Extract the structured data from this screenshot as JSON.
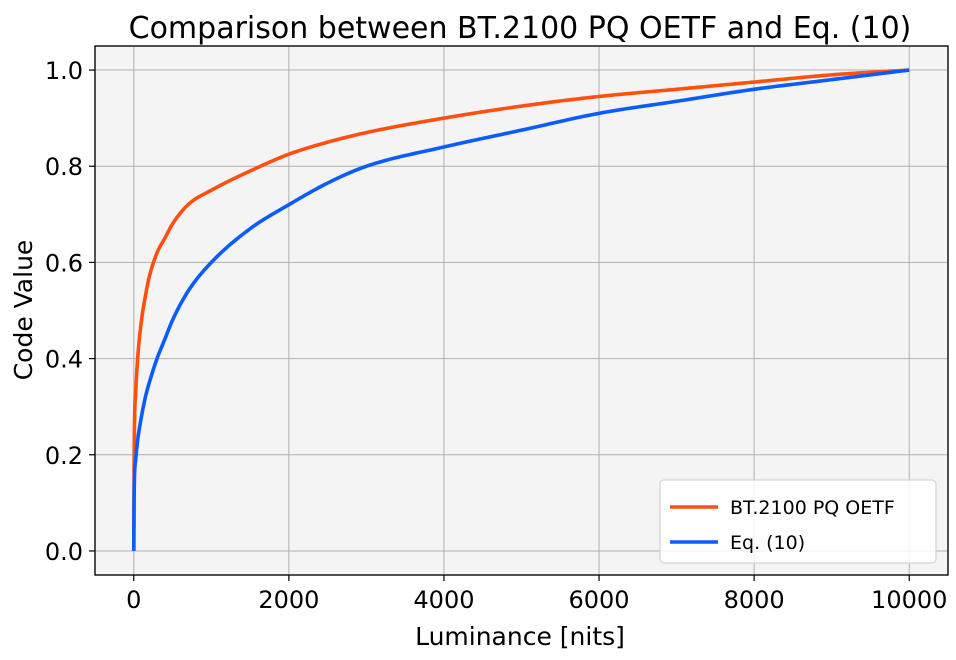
{
  "chart_data": {
    "type": "line",
    "title": "Comparison between BT.2100 PQ OETF and Eq. (10)",
    "xlabel": "Luminance [nits]",
    "ylabel": "Code Value",
    "xlim": [
      -500,
      10500
    ],
    "ylim": [
      -0.05,
      1.05
    ],
    "xticks": [
      0,
      2000,
      4000,
      6000,
      8000,
      10000
    ],
    "xtick_labels": [
      "0",
      "2000",
      "4000",
      "6000",
      "8000",
      "10000"
    ],
    "yticks": [
      0.0,
      0.2,
      0.4,
      0.6,
      0.8,
      1.0
    ],
    "ytick_labels": [
      "0.0",
      "0.2",
      "0.4",
      "0.6",
      "0.8",
      "1.0"
    ],
    "grid": true,
    "legend_position": "bottom-right",
    "background": "#f4f4f4",
    "series": [
      {
        "name": "BT.2100 PQ OETF",
        "color": "#ff5010",
        "x": [
          0,
          5,
          25,
          50,
          100,
          150,
          200,
          300,
          400,
          500,
          700,
          1000,
          1500,
          2000,
          2500,
          3000,
          4000,
          5000,
          6000,
          7000,
          8000,
          9000,
          10000
        ],
        "y": [
          0.0,
          0.2,
          0.33,
          0.4,
          0.48,
          0.53,
          0.57,
          0.62,
          0.65,
          0.68,
          0.72,
          0.75,
          0.79,
          0.825,
          0.85,
          0.87,
          0.9,
          0.925,
          0.945,
          0.96,
          0.975,
          0.99,
          1.0
        ]
      },
      {
        "name": "Eq. (10)",
        "color": "#0a5cff",
        "x": [
          0,
          5,
          25,
          50,
          100,
          150,
          200,
          300,
          400,
          500,
          700,
          1000,
          1500,
          2000,
          2500,
          3000,
          4000,
          5000,
          6000,
          7000,
          8000,
          9000,
          10000
        ],
        "y": [
          0.0,
          0.12,
          0.19,
          0.23,
          0.28,
          0.32,
          0.35,
          0.4,
          0.44,
          0.48,
          0.54,
          0.6,
          0.67,
          0.72,
          0.765,
          0.8,
          0.84,
          0.875,
          0.91,
          0.935,
          0.96,
          0.98,
          1.0
        ]
      }
    ]
  }
}
